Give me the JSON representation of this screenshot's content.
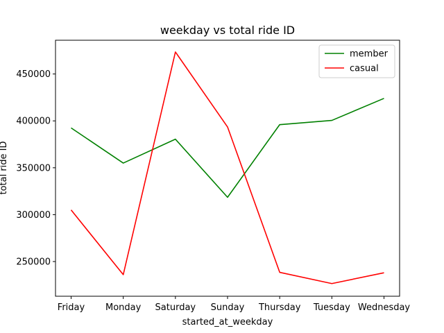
{
  "chart_data": {
    "type": "line",
    "title": "weekday vs total ride ID",
    "xlabel": "started_at_weekday",
    "ylabel": "total ride ID",
    "categories": [
      "Friday",
      "Monday",
      "Saturday",
      "Sunday",
      "Thursday",
      "Tuesday",
      "Wednesday"
    ],
    "series": [
      {
        "name": "member",
        "color": "#008000",
        "values": [
          392500,
          355000,
          380500,
          318500,
          396000,
          400500,
          424000
        ]
      },
      {
        "name": "casual",
        "color": "#ff0000",
        "values": [
          305000,
          236000,
          473500,
          393500,
          238500,
          226500,
          238000
        ]
      }
    ],
    "yticks": [
      250000,
      300000,
      350000,
      400000,
      450000
    ],
    "ylim": [
      213000,
      486000
    ],
    "grid": false,
    "legend_position": "top-right"
  }
}
